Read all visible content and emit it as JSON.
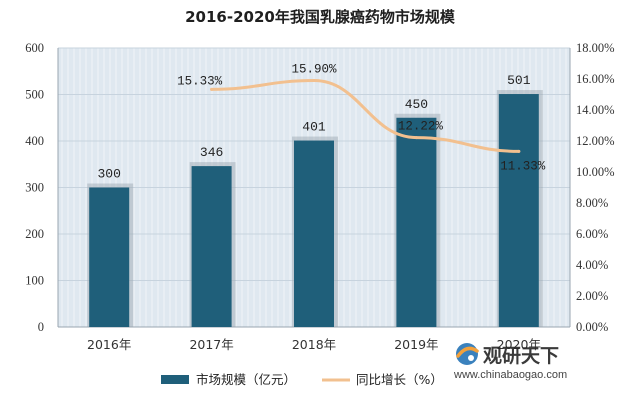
{
  "chart_data": {
    "type": "bar",
    "title": "2016-2020年我国乳腺癌药物市场规模",
    "categories": [
      "2016年",
      "2017年",
      "2018年",
      "2019年",
      "2020年"
    ],
    "series": [
      {
        "name": "市场规模（亿元）",
        "type": "bar",
        "axis": "left",
        "values": [
          300,
          346,
          401,
          450,
          501
        ],
        "labels": [
          "300",
          "346",
          "401",
          "450",
          "501"
        ],
        "color": "#1f5f7a"
      },
      {
        "name": "同比增长（%）",
        "type": "line",
        "axis": "right",
        "x": [
          "2017年",
          "2018年",
          "2019年",
          "2020年"
        ],
        "values": [
          15.33,
          15.9,
          12.22,
          11.33
        ],
        "labels": [
          "15.33%",
          "15.90%",
          "12.22%",
          "11.33%"
        ],
        "color": "#f2c08f"
      }
    ],
    "y_left": {
      "ylim": [
        0,
        600
      ],
      "ticks": [
        "0",
        "100",
        "200",
        "300",
        "400",
        "500",
        "600"
      ]
    },
    "y_right": {
      "ylim": [
        0,
        18
      ],
      "ticks": [
        "0.00%",
        "2.00%",
        "4.00%",
        "6.00%",
        "8.00%",
        "10.00%",
        "12.00%",
        "14.00%",
        "16.00%",
        "18.00%"
      ]
    },
    "grid": true,
    "legend_position": "bottom"
  },
  "watermark": {
    "name": "观研天下",
    "url": "www.chinabaogao.com"
  }
}
